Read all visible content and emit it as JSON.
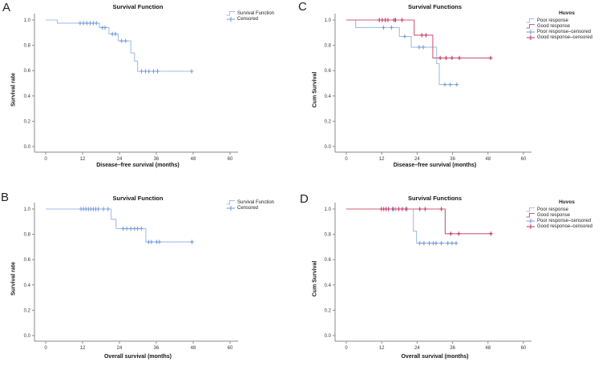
{
  "figure": {
    "background": "#ffffff",
    "colors": {
      "axis": "#8a8a8a",
      "tick_text": "#3a3a3a",
      "label_text": "#141414",
      "poor_response_blue_line": "#A3BEE8",
      "poor_response_blue_censor": "#6D97DA",
      "good_response_red_line": "#D05C78",
      "good_response_red_censor": "#C22B5C"
    }
  },
  "chart_data": [
    {
      "panel_label": "A",
      "type": "line",
      "subtype": "kaplan_meier_step",
      "title": "Survival Function",
      "xlabel": "Disease–free survival (months)",
      "ylabel": "Survival rate",
      "xlim": [
        0,
        63
      ],
      "ylim": [
        0,
        1.05
      ],
      "xticks": [
        0,
        12,
        24,
        36,
        48,
        60
      ],
      "ytick_labels": [
        "0.0",
        "0.2",
        "0.4",
        "0.6",
        "0.8",
        "1.0"
      ],
      "grid": false,
      "legend": {
        "position": "top-right",
        "items": [
          {
            "label": "Survival Function",
            "symbol": "step",
            "color": "#A3BEE8"
          },
          {
            "label": "Censored",
            "symbol": "plus",
            "color": "#6D97DA"
          }
        ]
      },
      "series": [
        {
          "name": "Survival Function",
          "line_color": "#A3BEE8",
          "censor_color": "#6D97DA",
          "steps": [
            [
              0,
              1.0
            ],
            [
              3.8,
              0.975
            ],
            [
              17.5,
              0.94
            ],
            [
              20.6,
              0.89
            ],
            [
              23.6,
              0.835
            ],
            [
              27.7,
              0.74
            ],
            [
              28.9,
              0.675
            ],
            [
              29.9,
              0.595
            ],
            [
              48,
              0.595
            ]
          ],
          "censored": [
            [
              11.2,
              0.975
            ],
            [
              12.3,
              0.975
            ],
            [
              13.4,
              0.975
            ],
            [
              14.5,
              0.975
            ],
            [
              15.5,
              0.975
            ],
            [
              16.5,
              0.975
            ],
            [
              18.5,
              0.94
            ],
            [
              19.3,
              0.94
            ],
            [
              21.7,
              0.89
            ],
            [
              22.7,
              0.89
            ],
            [
              24.7,
              0.835
            ],
            [
              26,
              0.835
            ],
            [
              31.2,
              0.595
            ],
            [
              32.5,
              0.595
            ],
            [
              33.6,
              0.595
            ],
            [
              35.1,
              0.595
            ],
            [
              36.4,
              0.595
            ],
            [
              47.5,
              0.595
            ]
          ]
        }
      ]
    },
    {
      "panel_label": "B",
      "type": "line",
      "subtype": "kaplan_meier_step",
      "title": "Survival Function",
      "xlabel": "Overall survival (months)",
      "ylabel": "Survival rate",
      "xlim": [
        0,
        63
      ],
      "ylim": [
        0,
        1.05
      ],
      "xticks": [
        0,
        12,
        24,
        36,
        48,
        60
      ],
      "ytick_labels": [
        "0.0",
        "0.2",
        "0.4",
        "0.6",
        "0.8",
        "1.0"
      ],
      "grid": false,
      "legend": {
        "position": "top-right",
        "items": [
          {
            "label": "Survival Function",
            "symbol": "step",
            "color": "#A3BEE8"
          },
          {
            "label": "Censored",
            "symbol": "plus",
            "color": "#6D97DA"
          }
        ]
      },
      "series": [
        {
          "name": "Survival Function",
          "line_color": "#A3BEE8",
          "censor_color": "#6D97DA",
          "steps": [
            [
              0,
              1.0
            ],
            [
              21.3,
              0.92
            ],
            [
              22.9,
              0.845
            ],
            [
              32.6,
              0.74
            ],
            [
              48,
              0.74
            ]
          ],
          "censored": [
            [
              11.5,
              1.0
            ],
            [
              12.3,
              1.0
            ],
            [
              13.1,
              1.0
            ],
            [
              13.9,
              1.0
            ],
            [
              14.7,
              1.0
            ],
            [
              15.5,
              1.0
            ],
            [
              16.3,
              1.0
            ],
            [
              17.1,
              1.0
            ],
            [
              18.8,
              1.0
            ],
            [
              20.3,
              1.0
            ],
            [
              25.2,
              0.845
            ],
            [
              26.4,
              0.845
            ],
            [
              27.7,
              0.845
            ],
            [
              28.9,
              0.845
            ],
            [
              29.9,
              0.845
            ],
            [
              31.1,
              0.845
            ],
            [
              33.5,
              0.74
            ],
            [
              34.4,
              0.74
            ],
            [
              36.1,
              0.74
            ],
            [
              37,
              0.74
            ],
            [
              47.6,
              0.74
            ]
          ]
        }
      ]
    },
    {
      "panel_label": "C",
      "type": "line",
      "subtype": "kaplan_meier_step",
      "title": "Survival Functions",
      "xlabel": "Disease–free survival (months)",
      "ylabel": "Cum Survival",
      "xlim": [
        0,
        63
      ],
      "ylim": [
        0,
        1.05
      ],
      "xticks": [
        0,
        12,
        24,
        36,
        48,
        60
      ],
      "ytick_labels": [
        "0.0",
        "0.2",
        "0.4",
        "0.6",
        "0.8",
        "1.0"
      ],
      "grid": false,
      "legend": {
        "position": "top-right",
        "title": "Huvos",
        "items": [
          {
            "label": "Poor response",
            "symbol": "step",
            "color": "#A3BEE8"
          },
          {
            "label": "Good response",
            "symbol": "step",
            "color": "#D05C78"
          },
          {
            "label": "Poor response–censored",
            "symbol": "plus",
            "color": "#6D97DA"
          },
          {
            "label": "Good response–censored",
            "symbol": "plus",
            "color": "#C22B5C"
          }
        ]
      },
      "series": [
        {
          "name": "Poor response",
          "line_color": "#A3BEE8",
          "censor_color": "#6D97DA",
          "steps": [
            [
              0,
              1.0
            ],
            [
              3.2,
              0.94
            ],
            [
              18,
              0.87
            ],
            [
              22,
              0.785
            ],
            [
              30.6,
              0.655
            ],
            [
              31.5,
              0.49
            ],
            [
              37.5,
              0.49
            ]
          ],
          "censored": [
            [
              12.6,
              0.94
            ],
            [
              15.3,
              0.94
            ],
            [
              19.8,
              0.87
            ],
            [
              24.7,
              0.785
            ],
            [
              26.1,
              0.785
            ],
            [
              33.4,
              0.49
            ],
            [
              35.2,
              0.49
            ],
            [
              37.4,
              0.49
            ]
          ]
        },
        {
          "name": "Good response",
          "line_color": "#D05C78",
          "censor_color": "#C22B5C",
          "steps": [
            [
              0,
              1.0
            ],
            [
              23,
              0.88
            ],
            [
              29.3,
              0.7
            ],
            [
              49.1,
              0.7
            ]
          ],
          "censored": [
            [
              11.2,
              1.0
            ],
            [
              12.2,
              1.0
            ],
            [
              13.2,
              1.0
            ],
            [
              14.1,
              1.0
            ],
            [
              16.2,
              1.0
            ],
            [
              16.7,
              1.0
            ],
            [
              18.9,
              1.0
            ],
            [
              25.6,
              0.88
            ],
            [
              27,
              0.88
            ],
            [
              31.8,
              0.7
            ],
            [
              33.8,
              0.7
            ],
            [
              35.8,
              0.7
            ],
            [
              38.3,
              0.7
            ],
            [
              48.9,
              0.7
            ]
          ]
        }
      ]
    },
    {
      "panel_label": "D",
      "type": "line",
      "subtype": "kaplan_meier_step",
      "title": "Survival Functions",
      "xlabel": "Overall survival (months)",
      "ylabel": "Cum Survival",
      "xlim": [
        0,
        63
      ],
      "ylim": [
        0,
        1.05
      ],
      "xticks": [
        0,
        12,
        24,
        36,
        48,
        60
      ],
      "ytick_labels": [
        "0.0",
        "0.2",
        "0.4",
        "0.6",
        "0.8",
        "1.0"
      ],
      "grid": false,
      "legend": {
        "position": "top-right",
        "title": "Huvos",
        "items": [
          {
            "label": "Poor response",
            "symbol": "step",
            "color": "#A3BEE8"
          },
          {
            "label": "Good response",
            "symbol": "step",
            "color": "#D05C78"
          },
          {
            "label": "Poor response–censored",
            "symbol": "plus",
            "color": "#6D97DA"
          },
          {
            "label": "Good response–censored",
            "symbol": "plus",
            "color": "#C22B5C"
          }
        ]
      },
      "series": [
        {
          "name": "Poor response",
          "line_color": "#A3BEE8",
          "censor_color": "#6D97DA",
          "steps": [
            [
              0,
              1.0
            ],
            [
              22.7,
              0.825
            ],
            [
              23.8,
              0.73
            ],
            [
              37.6,
              0.73
            ]
          ],
          "censored": [
            [
              15.6,
              1.0
            ],
            [
              16.8,
              1.0
            ],
            [
              20.6,
              1.0
            ],
            [
              24.9,
              0.73
            ],
            [
              26.3,
              0.73
            ],
            [
              28.1,
              0.73
            ],
            [
              29.5,
              0.73
            ],
            [
              30.4,
              0.73
            ],
            [
              32.2,
              0.73
            ],
            [
              34.4,
              0.73
            ],
            [
              35.8,
              0.73
            ],
            [
              37.2,
              0.73
            ]
          ]
        },
        {
          "name": "Good response",
          "line_color": "#D05C78",
          "censor_color": "#C22B5C",
          "steps": [
            [
              0,
              1.0
            ],
            [
              33.5,
              0.805
            ],
            [
              49.3,
              0.805
            ]
          ],
          "censored": [
            [
              11.9,
              1.0
            ],
            [
              12.7,
              1.0
            ],
            [
              13.5,
              1.0
            ],
            [
              14.3,
              1.0
            ],
            [
              16,
              1.0
            ],
            [
              17.8,
              1.0
            ],
            [
              19,
              1.0
            ],
            [
              20.2,
              1.0
            ],
            [
              24.9,
              1.0
            ],
            [
              26.7,
              1.0
            ],
            [
              32.2,
              1.0
            ],
            [
              35.4,
              0.805
            ],
            [
              38.1,
              0.805
            ],
            [
              49,
              0.805
            ]
          ]
        }
      ]
    }
  ]
}
